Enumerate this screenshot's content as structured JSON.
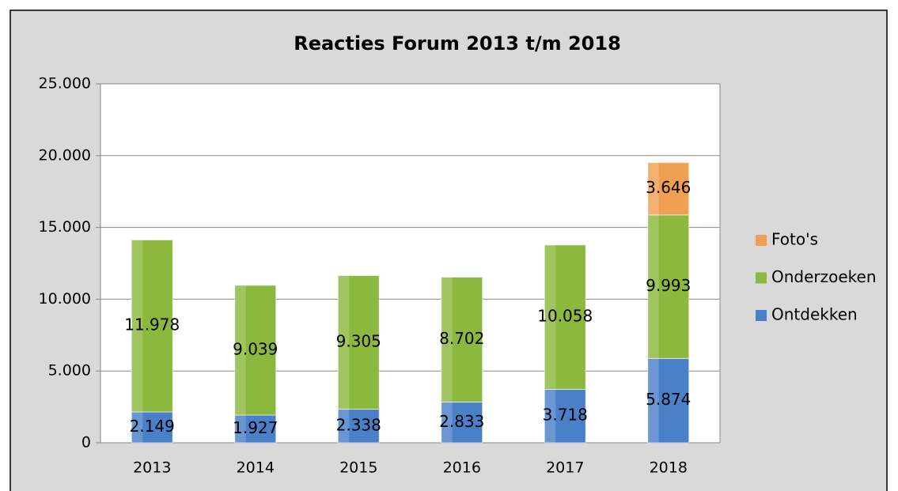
{
  "chart_data": {
    "type": "stacked_bar",
    "title": "Reacties Forum 2013 t/m 2018",
    "categories": [
      "2013",
      "2014",
      "2015",
      "2016",
      "2017",
      "2018"
    ],
    "series": [
      {
        "name": "Ontdekken",
        "color": "#4a80c8",
        "values": [
          2149,
          1927,
          2338,
          2833,
          3718,
          5874
        ],
        "value_labels": [
          "2.149",
          "1.927",
          "2.338",
          "2.833",
          "3.718",
          "5.874"
        ]
      },
      {
        "name": "Onderzoeken",
        "color": "#8cb83e",
        "values": [
          11978,
          9039,
          9305,
          8702,
          10058,
          9993
        ],
        "value_labels": [
          "11.978",
          "9.039",
          "9.305",
          "8.702",
          "10.058",
          "9.993"
        ]
      },
      {
        "name": "Foto's",
        "color": "#f0a053",
        "values": [
          null,
          null,
          null,
          null,
          null,
          3646
        ],
        "value_labels": [
          null,
          null,
          null,
          null,
          null,
          "3.646"
        ]
      }
    ],
    "ylim": [
      0,
      25000
    ],
    "yticks": [
      0,
      {
        "value": 5000,
        "label": "5.000"
      },
      {
        "value": 10000,
        "label": "10.000"
      },
      {
        "value": 15000,
        "label": "15.000"
      },
      {
        "value": 20000,
        "label": "20.000"
      },
      {
        "value": 25000,
        "label": "25.000"
      }
    ],
    "grid": true,
    "legend": "right"
  }
}
